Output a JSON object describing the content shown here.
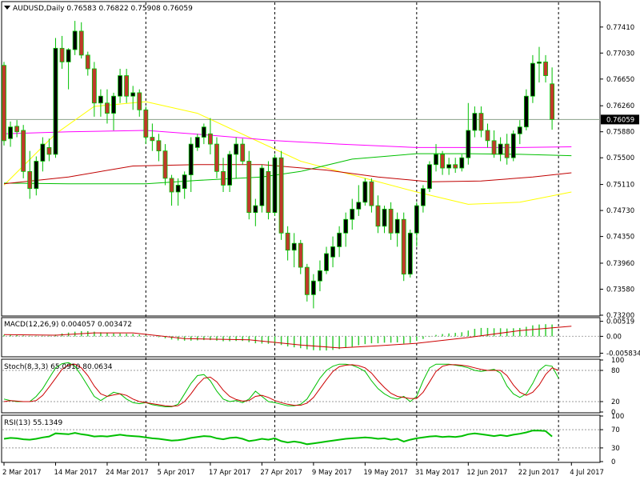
{
  "chart_data": [
    {
      "type": "candlestick",
      "panel": "price",
      "header": "AUDUSD,Daily  0.76583 0.76822 0.75908 0.76059",
      "symbol": "AUDUSD",
      "timeframe": "Daily",
      "ohlc_last": [
        0.76583,
        0.76822,
        0.75908,
        0.76059
      ],
      "ylim": [
        0.732,
        0.7777
      ],
      "yticks": [
        "0.77410",
        "0.77030",
        "0.76650",
        "0.76260",
        "0.75880",
        "0.75500",
        "0.75110",
        "0.74730",
        "0.74350",
        "0.73960",
        "0.73580",
        "0.73200"
      ],
      "current_price_label": "0.76059",
      "current_price": 0.76059,
      "x_labels": [
        "2 Mar 2017",
        "14 Mar 2017",
        "24 Mar 2017",
        "5 Apr 2017",
        "17 Apr 2017",
        "27 Apr 2017",
        "9 May 2017",
        "19 May 2017",
        "31 May 2017",
        "12 Jun 2017",
        "22 Jun 2017",
        "4 Jul 2017"
      ],
      "x_label_bars": [
        0,
        8,
        16,
        24,
        32,
        40,
        48,
        56,
        64,
        72,
        80,
        88
      ],
      "dashed_separators_at_bars": [
        22,
        42,
        64,
        86
      ],
      "candles": [
        [
          0.7685,
          0.769,
          0.7568,
          0.7575
        ],
        [
          0.7578,
          0.7603,
          0.7566,
          0.7595
        ],
        [
          0.7596,
          0.7605,
          0.758,
          0.7588
        ],
        [
          0.759,
          0.7598,
          0.752,
          0.753
        ],
        [
          0.753,
          0.756,
          0.749,
          0.7505
        ],
        [
          0.7505,
          0.7552,
          0.7495,
          0.7545
        ],
        [
          0.7545,
          0.758,
          0.753,
          0.757
        ],
        [
          0.7565,
          0.7578,
          0.7545,
          0.7555
        ],
        [
          0.7555,
          0.7725,
          0.755,
          0.771
        ],
        [
          0.771,
          0.7728,
          0.768,
          0.769
        ],
        [
          0.769,
          0.771,
          0.765,
          0.7708
        ],
        [
          0.7708,
          0.775,
          0.77,
          0.7735
        ],
        [
          0.7735,
          0.7748,
          0.7695,
          0.77
        ],
        [
          0.77,
          0.7705,
          0.767,
          0.768
        ],
        [
          0.768,
          0.769,
          0.761,
          0.763
        ],
        [
          0.763,
          0.765,
          0.761,
          0.764
        ],
        [
          0.763,
          0.765,
          0.76,
          0.7615
        ],
        [
          0.7615,
          0.7645,
          0.759,
          0.764
        ],
        [
          0.764,
          0.768,
          0.763,
          0.767
        ],
        [
          0.767,
          0.768,
          0.763,
          0.764
        ],
        [
          0.764,
          0.7655,
          0.762,
          0.7645
        ],
        [
          0.7645,
          0.765,
          0.761,
          0.762
        ],
        [
          0.762,
          0.7625,
          0.757,
          0.758
        ],
        [
          0.758,
          0.76,
          0.756,
          0.7575
        ],
        [
          0.7575,
          0.7585,
          0.7545,
          0.756
        ],
        [
          0.756,
          0.757,
          0.751,
          0.752
        ],
        [
          0.752,
          0.7525,
          0.748,
          0.75
        ],
        [
          0.75,
          0.752,
          0.748,
          0.751
        ],
        [
          0.7505,
          0.753,
          0.749,
          0.7525
        ],
        [
          0.7525,
          0.758,
          0.75,
          0.757
        ],
        [
          0.7565,
          0.7585,
          0.756,
          0.758
        ],
        [
          0.758,
          0.76,
          0.757,
          0.7595
        ],
        [
          0.7585,
          0.7608,
          0.7555,
          0.757
        ],
        [
          0.757,
          0.758,
          0.752,
          0.753
        ],
        [
          0.753,
          0.755,
          0.75,
          0.751
        ],
        [
          0.751,
          0.756,
          0.75,
          0.7555
        ],
        [
          0.7555,
          0.758,
          0.752,
          0.757
        ],
        [
          0.757,
          0.7578,
          0.754,
          0.7545
        ],
        [
          0.7545,
          0.756,
          0.746,
          0.747
        ],
        [
          0.747,
          0.749,
          0.745,
          0.748
        ],
        [
          0.748,
          0.754,
          0.747,
          0.7535
        ],
        [
          0.753,
          0.7545,
          0.746,
          0.747
        ],
        [
          0.747,
          0.7555,
          0.7465,
          0.755
        ],
        [
          0.755,
          0.756,
          0.743,
          0.744
        ],
        [
          0.744,
          0.745,
          0.74,
          0.7415
        ],
        [
          0.7415,
          0.744,
          0.739,
          0.7425
        ],
        [
          0.7425,
          0.743,
          0.738,
          0.739
        ],
        [
          0.739,
          0.7395,
          0.734,
          0.735
        ],
        [
          0.735,
          0.738,
          0.733,
          0.737
        ],
        [
          0.737,
          0.74,
          0.7355,
          0.7385
        ],
        [
          0.7385,
          0.742,
          0.738,
          0.741
        ],
        [
          0.7405,
          0.7435,
          0.739,
          0.742
        ],
        [
          0.742,
          0.745,
          0.7405,
          0.744
        ],
        [
          0.744,
          0.747,
          0.742,
          0.746
        ],
        [
          0.746,
          0.749,
          0.7445,
          0.7475
        ],
        [
          0.7475,
          0.751,
          0.7465,
          0.7485
        ],
        [
          0.7485,
          0.752,
          0.748,
          0.7515
        ],
        [
          0.7515,
          0.752,
          0.747,
          0.748
        ],
        [
          0.748,
          0.7495,
          0.744,
          0.745
        ],
        [
          0.745,
          0.748,
          0.744,
          0.7475
        ],
        [
          0.7475,
          0.7485,
          0.743,
          0.744
        ],
        [
          0.744,
          0.747,
          0.742,
          0.746
        ],
        [
          0.746,
          0.747,
          0.737,
          0.738
        ],
        [
          0.738,
          0.7445,
          0.7375,
          0.744
        ],
        [
          0.744,
          0.7485,
          0.742,
          0.748
        ],
        [
          0.748,
          0.751,
          0.747,
          0.7505
        ],
        [
          0.7505,
          0.7545,
          0.75,
          0.754
        ],
        [
          0.754,
          0.757,
          0.753,
          0.7555
        ],
        [
          0.7555,
          0.756,
          0.7525,
          0.7535
        ],
        [
          0.7535,
          0.755,
          0.7525,
          0.754
        ],
        [
          0.754,
          0.755,
          0.7528,
          0.7535
        ],
        [
          0.7535,
          0.7555,
          0.753,
          0.755
        ],
        [
          0.755,
          0.763,
          0.754,
          0.759
        ],
        [
          0.759,
          0.7625,
          0.758,
          0.7615
        ],
        [
          0.7615,
          0.7625,
          0.758,
          0.759
        ],
        [
          0.759,
          0.76,
          0.7565,
          0.7575
        ],
        [
          0.7575,
          0.759,
          0.755,
          0.7555
        ],
        [
          0.7555,
          0.758,
          0.7545,
          0.757
        ],
        [
          0.757,
          0.7585,
          0.754,
          0.755
        ],
        [
          0.755,
          0.759,
          0.7545,
          0.7585
        ],
        [
          0.7585,
          0.7605,
          0.757,
          0.7595
        ],
        [
          0.7595,
          0.765,
          0.759,
          0.764
        ],
        [
          0.764,
          0.77,
          0.763,
          0.7688
        ],
        [
          0.7688,
          0.7712,
          0.766,
          0.769
        ],
        [
          0.769,
          0.77,
          0.766,
          0.767
        ],
        [
          0.7658,
          0.7682,
          0.7591,
          0.7606
        ]
      ],
      "moving_averages": [
        {
          "color": "#ffff00",
          "points": [
            [
              0,
              0.751
            ],
            [
              8,
              0.7585
            ],
            [
              14,
              0.7625
            ],
            [
              22,
              0.7632
            ],
            [
              30,
              0.7615
            ],
            [
              38,
              0.758
            ],
            [
              46,
              0.7545
            ],
            [
              56,
              0.752
            ],
            [
              64,
              0.75
            ],
            [
              72,
              0.7482
            ],
            [
              80,
              0.7485
            ],
            [
              88,
              0.75
            ]
          ]
        },
        {
          "color": "#ff00ff",
          "points": [
            [
              0,
              0.7585
            ],
            [
              10,
              0.7588
            ],
            [
              22,
              0.759
            ],
            [
              32,
              0.7583
            ],
            [
              42,
              0.7575
            ],
            [
              52,
              0.757
            ],
            [
              64,
              0.7565
            ],
            [
              72,
              0.7565
            ],
            [
              80,
              0.7565
            ],
            [
              88,
              0.7566
            ]
          ]
        },
        {
          "color": "#00c000",
          "points": [
            [
              0,
              0.7513
            ],
            [
              10,
              0.7512
            ],
            [
              22,
              0.7512
            ],
            [
              30,
              0.7517
            ],
            [
              40,
              0.7522
            ],
            [
              46,
              0.753
            ],
            [
              54,
              0.7548
            ],
            [
              64,
              0.7556
            ],
            [
              72,
              0.7556
            ],
            [
              80,
              0.7555
            ],
            [
              88,
              0.7553
            ]
          ]
        },
        {
          "color": "#c00000",
          "points": [
            [
              0,
              0.7512
            ],
            [
              10,
              0.7522
            ],
            [
              20,
              0.7538
            ],
            [
              30,
              0.754
            ],
            [
              40,
              0.754
            ],
            [
              50,
              0.7532
            ],
            [
              58,
              0.7522
            ],
            [
              66,
              0.7515
            ],
            [
              74,
              0.7516
            ],
            [
              82,
              0.7522
            ],
            [
              88,
              0.7528
            ]
          ]
        }
      ]
    },
    {
      "type": "histogram",
      "panel": "macd",
      "header": "MACD(12,26,9) 0.004057 0.003472",
      "ylim": [
        -0.0068,
        0.0062
      ],
      "yticks": [
        "0.00519",
        "0.00",
        "-0.005834"
      ],
      "histogram": [
        0.0005,
        0.0005,
        0.0004,
        0.0003,
        0.0002,
        0.0002,
        0.0002,
        0.0002,
        0.0006,
        0.001,
        0.0013,
        0.0016,
        0.0018,
        0.0018,
        0.0016,
        0.0014,
        0.0012,
        0.001,
        0.001,
        0.0009,
        0.0008,
        0.0006,
        0.0003,
        0.0,
        -0.0003,
        -0.0007,
        -0.0011,
        -0.0014,
        -0.0015,
        -0.0015,
        -0.0014,
        -0.0013,
        -0.0013,
        -0.0015,
        -0.0017,
        -0.0017,
        -0.0016,
        -0.0016,
        -0.002,
        -0.0024,
        -0.0025,
        -0.0026,
        -0.0025,
        -0.003,
        -0.0035,
        -0.0038,
        -0.0041,
        -0.0045,
        -0.0048,
        -0.0049,
        -0.0049,
        -0.0047,
        -0.0044,
        -0.004,
        -0.0036,
        -0.0031,
        -0.0027,
        -0.0024,
        -0.0024,
        -0.0022,
        -0.0022,
        -0.0021,
        -0.0025,
        -0.0023,
        -0.0016,
        -0.0009,
        -0.0002,
        0.0005,
        0.0008,
        0.001,
        0.0012,
        0.0014,
        0.002,
        0.0026,
        0.0029,
        0.0029,
        0.0028,
        0.0028,
        0.0027,
        0.0028,
        0.0029,
        0.0033,
        0.0038,
        0.0041,
        0.0042,
        0.0041
      ],
      "signal": [
        [
          0,
          0.0006
        ],
        [
          8,
          0.0004
        ],
        [
          14,
          0.0012
        ],
        [
          20,
          0.0012
        ],
        [
          28,
          -0.0008
        ],
        [
          38,
          -0.0012
        ],
        [
          46,
          -0.003
        ],
        [
          52,
          -0.004
        ],
        [
          58,
          -0.0033
        ],
        [
          64,
          -0.0024
        ],
        [
          72,
          -0.0004
        ],
        [
          80,
          0.002
        ],
        [
          88,
          0.0035
        ]
      ]
    },
    {
      "type": "line",
      "panel": "stochastic",
      "header": "Stoch(8,3,3) 65.0910 80.0634",
      "ylim": [
        0,
        100
      ],
      "yticks": [
        "100",
        "80",
        "20",
        "0"
      ],
      "levels": [
        80,
        20
      ],
      "series": [
        {
          "color": "#00c000",
          "values": [
            25,
            22,
            20,
            20,
            20,
            30,
            45,
            65,
            85,
            93,
            95,
            88,
            70,
            50,
            30,
            22,
            30,
            38,
            35,
            25,
            18,
            16,
            18,
            14,
            12,
            10,
            10,
            15,
            35,
            55,
            70,
            72,
            60,
            40,
            25,
            20,
            22,
            18,
            25,
            40,
            30,
            20,
            18,
            15,
            12,
            12,
            15,
            25,
            45,
            65,
            80,
            88,
            92,
            92,
            90,
            85,
            78,
            60,
            45,
            35,
            28,
            25,
            30,
            20,
            30,
            60,
            85,
            92,
            92,
            92,
            90,
            88,
            85,
            80,
            78,
            80,
            82,
            75,
            50,
            35,
            28,
            35,
            55,
            80,
            90,
            88,
            65
          ]
        },
        {
          "color": "#cc0000",
          "values": [
            20,
            22,
            21,
            20,
            20,
            22,
            32,
            48,
            65,
            82,
            90,
            92,
            85,
            70,
            50,
            35,
            30,
            33,
            35,
            32,
            25,
            20,
            18,
            16,
            14,
            12,
            11,
            12,
            20,
            35,
            52,
            65,
            67,
            58,
            42,
            30,
            24,
            21,
            22,
            30,
            32,
            28,
            22,
            18,
            15,
            13,
            13,
            17,
            28,
            45,
            62,
            78,
            87,
            90,
            91,
            89,
            85,
            75,
            60,
            47,
            36,
            30,
            28,
            26,
            26,
            38,
            58,
            78,
            88,
            91,
            91,
            90,
            88,
            85,
            82,
            80,
            80,
            80,
            70,
            52,
            38,
            32,
            38,
            52,
            72,
            85,
            80
          ]
        }
      ]
    },
    {
      "type": "line",
      "panel": "rsi",
      "header": "RSI(13) 55.1349",
      "ylim": [
        0,
        100
      ],
      "yticks": [
        "100",
        "70",
        "30",
        "0"
      ],
      "levels": [
        70,
        30
      ],
      "series": [
        {
          "color": "#00c000",
          "values": [
            50,
            52,
            51,
            49,
            48,
            50,
            53,
            55,
            62,
            61,
            60,
            63,
            60,
            58,
            55,
            56,
            55,
            57,
            59,
            57,
            56,
            55,
            53,
            51,
            50,
            48,
            46,
            47,
            49,
            52,
            54,
            56,
            55,
            51,
            49,
            52,
            53,
            50,
            45,
            47,
            50,
            48,
            51,
            45,
            42,
            44,
            42,
            38,
            40,
            42,
            44,
            46,
            48,
            50,
            51,
            52,
            53,
            52,
            50,
            51,
            48,
            50,
            44,
            48,
            51,
            53,
            55,
            56,
            54,
            55,
            54,
            56,
            60,
            62,
            60,
            58,
            56,
            58,
            56,
            59,
            61,
            64,
            68,
            68,
            67,
            55
          ]
        }
      ]
    }
  ]
}
